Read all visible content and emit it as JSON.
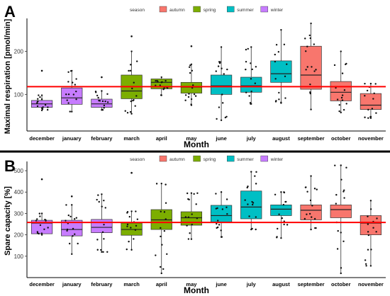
{
  "legend": {
    "title": "season",
    "entries": [
      {
        "name": "autumn",
        "color": "#f8766d"
      },
      {
        "name": "spring",
        "color": "#7cae00"
      },
      {
        "name": "summer",
        "color": "#00bfc4"
      },
      {
        "name": "winter",
        "color": "#c77cff"
      }
    ]
  },
  "chart_data": [
    {
      "type": "boxplot",
      "panel_label": "A",
      "xlabel": "Month",
      "ylabel": "Maximal respiration [pmol/min]",
      "ylim": [
        15,
        270
      ],
      "yticks": [
        100,
        200
      ],
      "reference_line": {
        "value": 118,
        "color": "#ff0000"
      },
      "grid": false,
      "legend_position": "top",
      "categories": [
        "december",
        "january",
        "february",
        "march",
        "april",
        "may",
        "june",
        "july",
        "august",
        "september",
        "october",
        "november"
      ],
      "season_colors": {
        "winter": "#c77cff",
        "spring": "#7cae00",
        "summer": "#00bfc4",
        "autumn": "#f8766d"
      },
      "boxes": [
        {
          "month": "december",
          "season": "winter",
          "whisker_low": 63,
          "q1": 70,
          "median": 78,
          "q3": 86,
          "whisker_high": 98,
          "outliers": [
            155
          ]
        },
        {
          "month": "january",
          "season": "winter",
          "whisker_low": 60,
          "q1": 77,
          "median": 92,
          "q3": 115,
          "whisker_high": 155,
          "outliers": []
        },
        {
          "month": "february",
          "season": "winter",
          "whisker_low": 64,
          "q1": 70,
          "median": 78,
          "q3": 89,
          "whisker_high": 108,
          "outliers": [
            140
          ]
        },
        {
          "month": "march",
          "season": "spring",
          "whisker_low": 55,
          "q1": 90,
          "median": 108,
          "q3": 145,
          "whisker_high": 200,
          "outliers": [
            235
          ]
        },
        {
          "month": "april",
          "season": "spring",
          "whisker_low": 98,
          "q1": 113,
          "median": 128,
          "q3": 136,
          "whisker_high": 140,
          "outliers": []
        },
        {
          "month": "may",
          "season": "spring",
          "whisker_low": 75,
          "q1": 103,
          "median": 117,
          "q3": 128,
          "whisker_high": 170,
          "outliers": [
            212
          ]
        },
        {
          "month": "june",
          "season": "summer",
          "whisker_low": 40,
          "q1": 100,
          "median": 120,
          "q3": 145,
          "whisker_high": 210,
          "outliers": []
        },
        {
          "month": "july",
          "season": "summer",
          "whisker_low": 78,
          "q1": 105,
          "median": 120,
          "q3": 140,
          "whisker_high": 210,
          "outliers": []
        },
        {
          "month": "august",
          "season": "summer",
          "whisker_low": 80,
          "q1": 128,
          "median": 148,
          "q3": 178,
          "whisker_high": 250,
          "outliers": []
        },
        {
          "month": "september",
          "season": "autumn",
          "whisker_low": 65,
          "q1": 112,
          "median": 145,
          "q3": 212,
          "whisker_high": 265,
          "outliers": []
        },
        {
          "month": "october",
          "season": "autumn",
          "whisker_low": 58,
          "q1": 85,
          "median": 105,
          "q3": 130,
          "whisker_high": 200,
          "outliers": []
        },
        {
          "month": "november",
          "season": "autumn",
          "whisker_low": 45,
          "q1": 65,
          "median": 75,
          "q3": 102,
          "whisker_high": 125,
          "outliers": []
        }
      ]
    },
    {
      "type": "boxplot",
      "panel_label": "B",
      "xlabel": "Month",
      "ylabel": "Spare capacity [%]",
      "ylim": [
        0,
        530
      ],
      "yticks": [
        100,
        200,
        300,
        400,
        500
      ],
      "reference_line": {
        "value": 258,
        "color": "#ff0000"
      },
      "grid": false,
      "legend_position": "top",
      "categories": [
        "december",
        "january",
        "february",
        "march",
        "april",
        "may",
        "june",
        "july",
        "august",
        "september",
        "october",
        "november"
      ],
      "season_colors": {
        "winter": "#c77cff",
        "spring": "#7cae00",
        "summer": "#00bfc4",
        "autumn": "#f8766d"
      },
      "boxes": [
        {
          "month": "december",
          "season": "winter",
          "whisker_low": 200,
          "q1": 205,
          "median": 255,
          "q3": 268,
          "whisker_high": 300,
          "outliers": [
            460
          ]
        },
        {
          "month": "january",
          "season": "winter",
          "whisker_low": 110,
          "q1": 195,
          "median": 225,
          "q3": 268,
          "whisker_high": 340,
          "outliers": [
            380
          ]
        },
        {
          "month": "february",
          "season": "winter",
          "whisker_low": 120,
          "q1": 210,
          "median": 235,
          "q3": 272,
          "whisker_high": 390,
          "outliers": []
        },
        {
          "month": "march",
          "season": "spring",
          "whisker_low": 130,
          "q1": 198,
          "median": 225,
          "q3": 255,
          "whisker_high": 310,
          "outliers": [
            490
          ]
        },
        {
          "month": "april",
          "season": "spring",
          "whisker_low": 20,
          "q1": 225,
          "median": 270,
          "q3": 318,
          "whisker_high": 440,
          "outliers": []
        },
        {
          "month": "may",
          "season": "spring",
          "whisker_low": 180,
          "q1": 245,
          "median": 280,
          "q3": 308,
          "whisker_high": 395,
          "outliers": []
        },
        {
          "month": "june",
          "season": "summer",
          "whisker_low": 190,
          "q1": 260,
          "median": 290,
          "q3": 338,
          "whisker_high": 400,
          "outliers": []
        },
        {
          "month": "july",
          "season": "summer",
          "whisker_low": 225,
          "q1": 275,
          "median": 330,
          "q3": 405,
          "whisker_high": 495,
          "outliers": []
        },
        {
          "month": "august",
          "season": "summer",
          "whisker_low": 185,
          "q1": 290,
          "median": 320,
          "q3": 340,
          "whisker_high": 400,
          "outliers": []
        },
        {
          "month": "september",
          "season": "autumn",
          "whisker_low": 225,
          "q1": 270,
          "median": 315,
          "q3": 340,
          "whisker_high": 475,
          "outliers": []
        },
        {
          "month": "october",
          "season": "autumn",
          "whisker_low": 20,
          "q1": 280,
          "median": 318,
          "q3": 340,
          "whisker_high": 525,
          "outliers": []
        },
        {
          "month": "november",
          "season": "autumn",
          "whisker_low": 55,
          "q1": 200,
          "median": 255,
          "q3": 290,
          "whisker_high": 360,
          "outliers": []
        }
      ]
    }
  ]
}
